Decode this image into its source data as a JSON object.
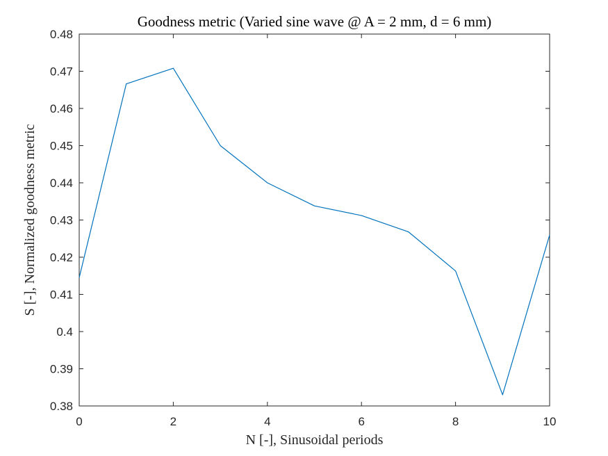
{
  "chart_data": {
    "type": "line",
    "title": "Goodness metric (Varied sine wave @ A = 2 mm, d = 6 mm)",
    "xlabel": "N [-], Sinusoidal periods",
    "ylabel": "S [-], Normalized goodness metric",
    "xlim": [
      0,
      10
    ],
    "ylim": [
      0.38,
      0.48
    ],
    "xticks": [
      0,
      2,
      4,
      6,
      8,
      10
    ],
    "xtick_labels": [
      "0",
      "2",
      "4",
      "6",
      "8",
      "10"
    ],
    "yticks": [
      0.38,
      0.39,
      0.4,
      0.41,
      0.42,
      0.43,
      0.44,
      0.45,
      0.46,
      0.47,
      0.48
    ],
    "ytick_labels": [
      "0.38",
      "0.39",
      "0.4",
      "0.41",
      "0.42",
      "0.43",
      "0.44",
      "0.45",
      "0.46",
      "0.47",
      "0.48"
    ],
    "grid": false,
    "series": [
      {
        "color": "#0072BD",
        "x": [
          0,
          1,
          2,
          3,
          4,
          5,
          6,
          7,
          8,
          9,
          10
        ],
        "y": [
          0.4145,
          0.4666,
          0.4708,
          0.45,
          0.44,
          0.4338,
          0.4312,
          0.4268,
          0.4163,
          0.383,
          0.426
        ]
      }
    ]
  }
}
